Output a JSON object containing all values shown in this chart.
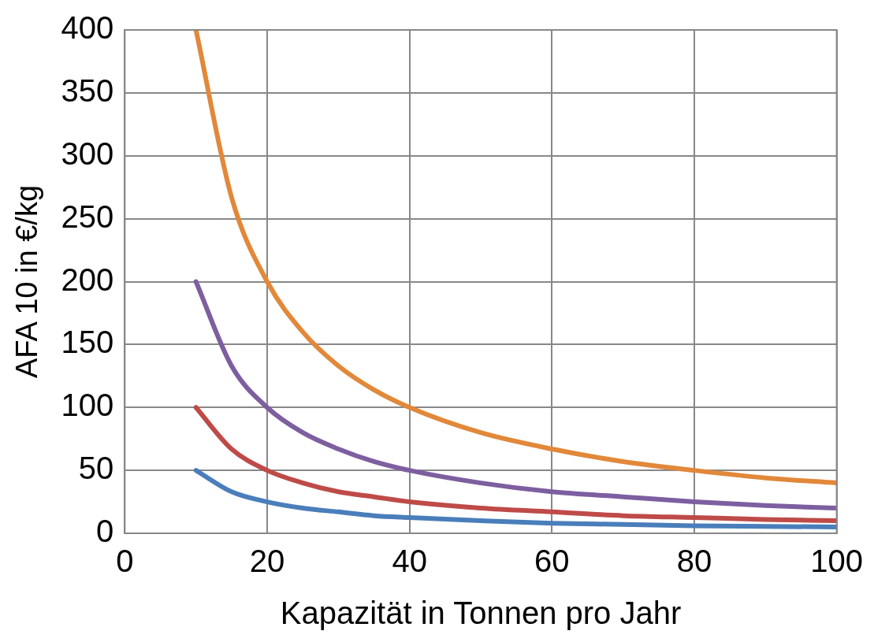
{
  "chart_data": {
    "type": "line",
    "xlabel": "Kapazität in Tonnen pro Jahr",
    "ylabel": "AFA 10 in €/kg",
    "x": [
      10,
      15,
      20,
      25,
      30,
      35,
      40,
      50,
      60,
      70,
      80,
      90,
      100
    ],
    "series": [
      {
        "color": "#4a7ebb",
        "values": [
          50,
          33,
          25,
          20,
          17,
          14,
          12.5,
          10,
          8,
          7,
          6,
          5.5,
          5
        ]
      },
      {
        "color": "#be4b48",
        "values": [
          100,
          67,
          50,
          40,
          33,
          29,
          25,
          20,
          17,
          14,
          12.5,
          11,
          10
        ]
      },
      {
        "color": "#7d5fa0",
        "values": [
          200,
          133,
          100,
          80,
          67,
          57,
          50,
          40,
          33,
          29,
          25,
          22,
          20
        ]
      },
      {
        "color": "#e2883a",
        "values": [
          400,
          267,
          200,
          160,
          133,
          114,
          100,
          80,
          67,
          57,
          50,
          44,
          40
        ]
      }
    ],
    "xlim": [
      0,
      100
    ],
    "xticks": [
      0,
      20,
      40,
      60,
      80,
      100
    ],
    "ylim": [
      0,
      400
    ],
    "yticks": [
      0,
      50,
      100,
      150,
      200,
      250,
      300,
      350,
      400
    ],
    "grid": true,
    "legend": false,
    "marker": "none",
    "line_style": "solid"
  }
}
